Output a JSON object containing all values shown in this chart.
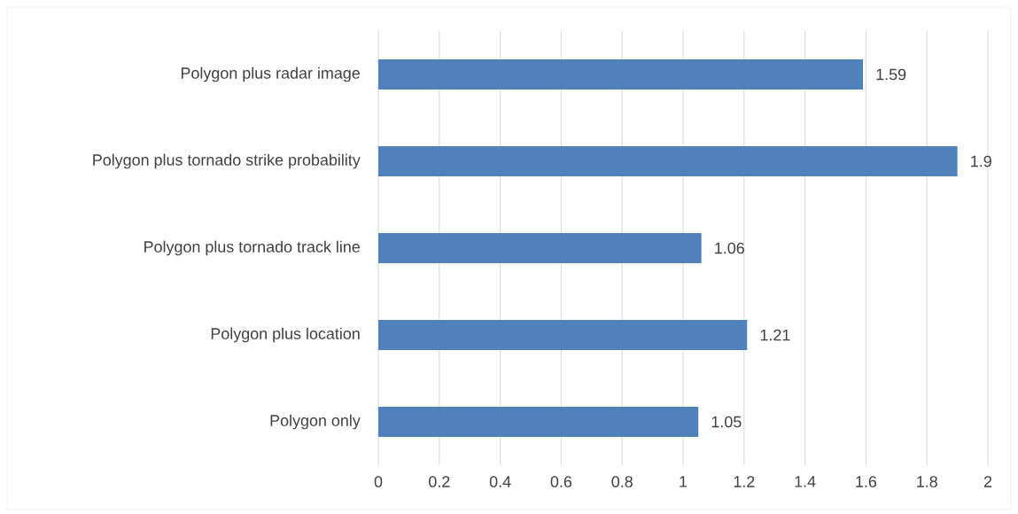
{
  "chart_data": {
    "type": "bar",
    "orientation": "horizontal",
    "categories": [
      "Polygon plus radar image",
      "Polygon plus tornado strike probability",
      "Polygon plus tornado track line",
      "Polygon plus location",
      "Polygon only"
    ],
    "values": [
      1.59,
      1.9,
      1.06,
      1.21,
      1.05
    ],
    "color": "#4f81bd",
    "xlim": [
      0,
      2
    ],
    "xticks": [
      0,
      0.2,
      0.4,
      0.6,
      0.8,
      1,
      1.2,
      1.4,
      1.6,
      1.8,
      2
    ],
    "grid": "x",
    "data_labels": true
  }
}
